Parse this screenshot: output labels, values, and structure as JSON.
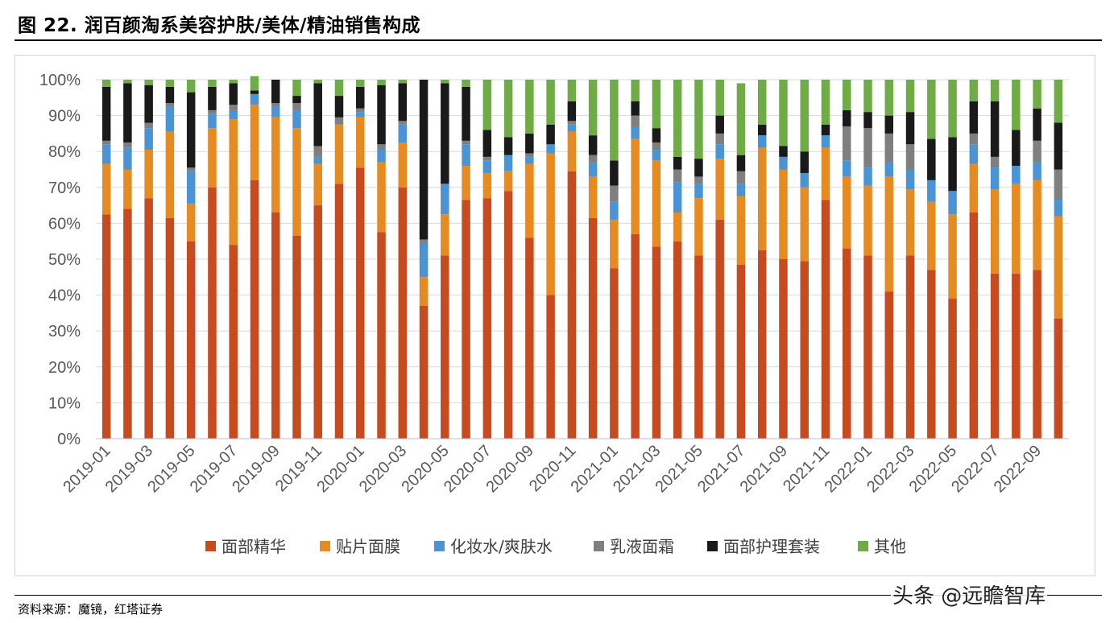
{
  "page": {
    "title": "图 22. 润百颜淘系美容护肤/美体/精油销售构成",
    "source": "资料来源：魔镜，红塔证券",
    "watermark": "头条 @远瞻智库"
  },
  "colors": {
    "面部精华": "#C84A1F",
    "贴片面膜": "#E68A22",
    "化妆水/爽肤水": "#4A93D4",
    "乳液面霜": "#7F7F7F",
    "面部护理套装": "#1A1A1A",
    "其他": "#6FAC46"
  },
  "chart_data": {
    "type": "bar",
    "stacked": true,
    "title": "",
    "xlabel": "",
    "ylabel": "",
    "ylim": [
      0,
      100
    ],
    "yticks": [
      "0%",
      "10%",
      "20%",
      "30%",
      "40%",
      "50%",
      "60%",
      "70%",
      "80%",
      "90%",
      "100%"
    ],
    "legend_position": "bottom",
    "categories": [
      "2019-01",
      "2019-02",
      "2019-03",
      "2019-04",
      "2019-05",
      "2019-06",
      "2019-07",
      "2019-08",
      "2019-09",
      "2019-10",
      "2019-11",
      "2019-12",
      "2020-01",
      "2020-02",
      "2020-03",
      "2020-04",
      "2020-05",
      "2020-06",
      "2020-07",
      "2020-08",
      "2020-09",
      "2020-10",
      "2020-11",
      "2020-12",
      "2021-01",
      "2021-02",
      "2021-03",
      "2021-04",
      "2021-05",
      "2021-06",
      "2021-07",
      "2021-08",
      "2021-09",
      "2021-10",
      "2021-11",
      "2021-12",
      "2022-01",
      "2022-02",
      "2022-03",
      "2022-04",
      "2022-05",
      "2022-06",
      "2022-07",
      "2022-08",
      "2022-09",
      "2022-10"
    ],
    "xtick_labels": [
      "2019-01",
      "",
      "2019-03",
      "",
      "2019-05",
      "",
      "2019-07",
      "",
      "2019-09",
      "",
      "2019-11",
      "",
      "2020-01",
      "",
      "2020-03",
      "",
      "2020-05",
      "",
      "2020-07",
      "",
      "2020-09",
      "",
      "2020-11",
      "",
      "2021-01",
      "",
      "2021-03",
      "",
      "2021-05",
      "",
      "2021-07",
      "",
      "2021-09",
      "",
      "2021-11",
      "",
      "2022-01",
      "",
      "2022-03",
      "",
      "2022-05",
      "",
      "2022-07",
      "",
      "2022-09",
      ""
    ],
    "series": [
      {
        "name": "面部精华",
        "values": [
          62.5,
          64,
          67,
          61.5,
          55,
          70,
          54,
          72,
          63,
          56.5,
          65,
          71,
          75.5,
          57.5,
          70,
          37,
          51,
          66.5,
          67,
          69,
          56,
          40,
          74.5,
          61.5,
          47.5,
          57,
          53.5,
          55,
          51,
          61,
          48.5,
          52.5,
          50,
          49.5,
          66.5,
          53,
          51,
          41,
          51,
          47,
          39,
          63,
          46,
          46,
          47,
          33.5
        ]
      },
      {
        "name": "贴片面膜",
        "values": [
          14,
          11,
          13.5,
          24,
          10.5,
          16.5,
          35,
          21,
          26.5,
          30,
          11.5,
          16.5,
          14,
          19.5,
          12.5,
          8,
          11.5,
          9.5,
          7,
          5.5,
          20.5,
          39.5,
          11,
          11.5,
          13.5,
          26.5,
          24,
          8,
          16,
          17,
          19,
          28.5,
          25,
          20.5,
          14.5,
          20,
          19.5,
          32,
          18.5,
          19,
          23.5,
          13.5,
          23.5,
          25,
          25,
          28.5
        ]
      },
      {
        "name": "化妆水/爽肤水",
        "values": [
          5.5,
          6,
          6,
          7,
          9,
          4,
          2.5,
          3,
          3,
          5,
          2,
          0,
          1.5,
          3.5,
          5,
          9.5,
          8.5,
          6,
          3.5,
          4.5,
          2,
          2.5,
          2,
          4,
          5,
          3.5,
          3,
          8.5,
          4,
          4,
          3.5,
          3.5,
          3.5,
          4,
          3.5,
          4.5,
          5,
          4,
          5.5,
          6,
          6.5,
          5.5,
          6,
          5,
          5,
          4.5
        ]
      },
      {
        "name": "乳液面霜",
        "values": [
          1,
          1.5,
          1.5,
          1,
          1,
          1,
          1.5,
          0,
          1,
          2,
          3,
          2,
          1,
          1.5,
          1,
          1,
          0,
          1,
          1,
          0,
          1,
          0,
          1,
          2,
          4.5,
          3,
          2,
          3.5,
          2,
          3,
          3.5,
          0,
          0,
          0,
          0,
          9.5,
          11,
          8,
          7,
          0,
          0,
          3,
          3,
          0,
          6,
          8.5
        ]
      },
      {
        "name": "面部护理套装",
        "values": [
          15,
          16.5,
          10.5,
          4.5,
          21,
          6.5,
          6,
          1,
          6.5,
          2,
          17.5,
          6,
          6,
          16.5,
          10.5,
          44.5,
          28,
          15,
          7.5,
          5,
          5.5,
          5.5,
          5.5,
          5.5,
          7,
          4,
          4,
          3.5,
          5,
          5,
          4.5,
          3,
          3,
          6,
          3,
          4.5,
          4.5,
          5,
          9,
          11.5,
          15,
          9,
          15.5,
          10,
          9,
          13
        ]
      },
      {
        "name": "其他",
        "values": [
          2,
          1,
          1.5,
          2,
          3.5,
          2,
          1,
          4,
          0,
          4.5,
          1,
          4.5,
          2,
          1.5,
          1,
          0,
          1,
          2,
          14,
          16,
          15,
          12.5,
          6,
          15.5,
          22.5,
          6,
          13.5,
          21.5,
          22,
          10,
          20,
          12.5,
          18.5,
          20,
          12.5,
          8.5,
          9,
          10,
          9,
          16.5,
          16,
          6,
          6,
          14,
          8,
          12
        ]
      }
    ]
  }
}
